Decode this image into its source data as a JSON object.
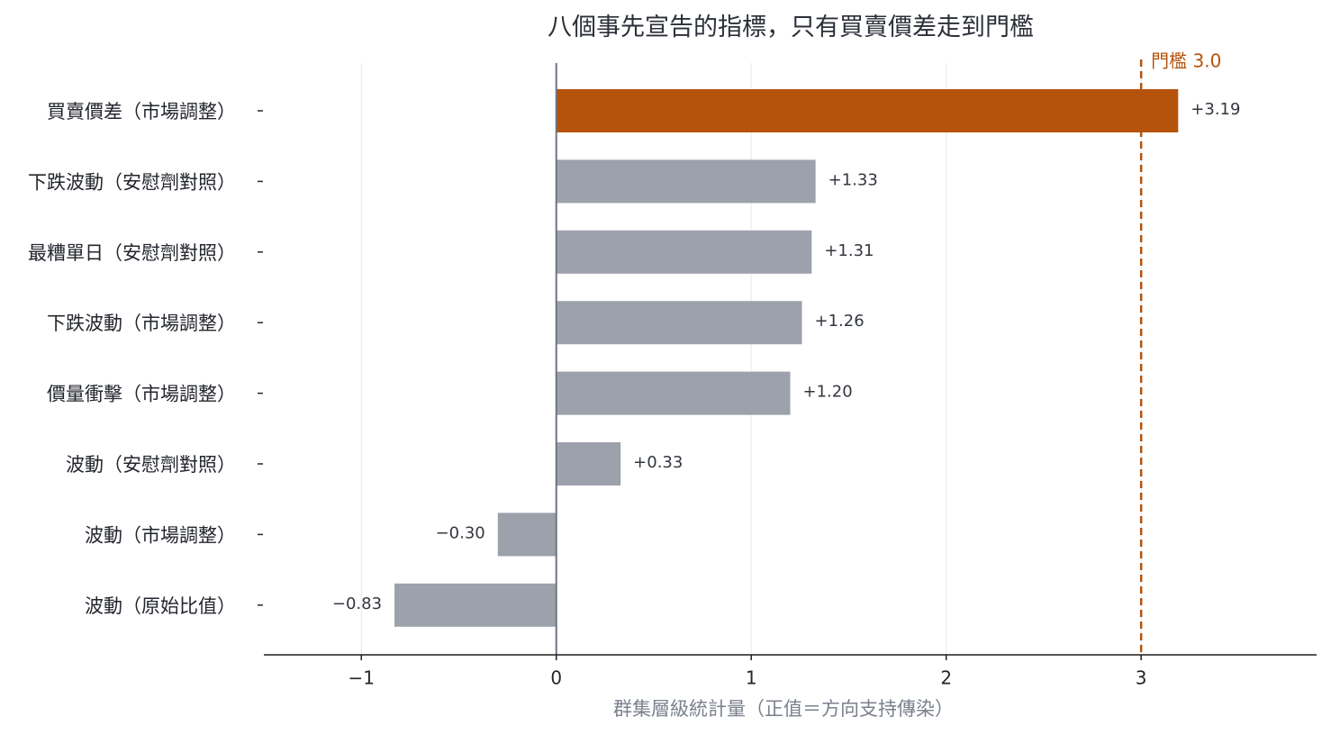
{
  "chart_data": {
    "type": "bar",
    "orientation": "horizontal",
    "title": "八個事先宣告的指標，只有買賣價差走到門檻",
    "xlabel": "群集層級統計量（正值＝方向支持傳染）",
    "ylabel": "",
    "xlim": [
      -1.5,
      3.9
    ],
    "xticks": [
      -1,
      0,
      1,
      2,
      3
    ],
    "xtick_labels": [
      "−1",
      "0",
      "1",
      "2",
      "3"
    ],
    "grid": "vertical",
    "categories": [
      "買賣價差（市場調整）",
      "下跌波動（安慰劑對照）",
      "最糟單日（安慰劑對照）",
      "下跌波動（市場調整）",
      "價量衝擊（市場調整）",
      "波動（安慰劑對照）",
      "波動（市場調整）",
      "波動（原始比值）"
    ],
    "values": [
      3.19,
      1.33,
      1.31,
      1.26,
      1.2,
      0.33,
      -0.3,
      -0.83
    ],
    "value_labels": [
      "+3.19",
      "+1.33",
      "+1.31",
      "+1.26",
      "+1.20",
      "+0.33",
      "−0.30",
      "−0.83"
    ],
    "highlight_index": 0,
    "threshold": {
      "value": 3.0,
      "label": "門檻 3.0"
    },
    "colors": {
      "highlight": "#b5530c",
      "bar": "#9ca1ab",
      "threshold": "#b5530c",
      "zero_line": "#6f7482",
      "grid": "#e8e8e8",
      "axis": "#1f1f1f"
    }
  }
}
